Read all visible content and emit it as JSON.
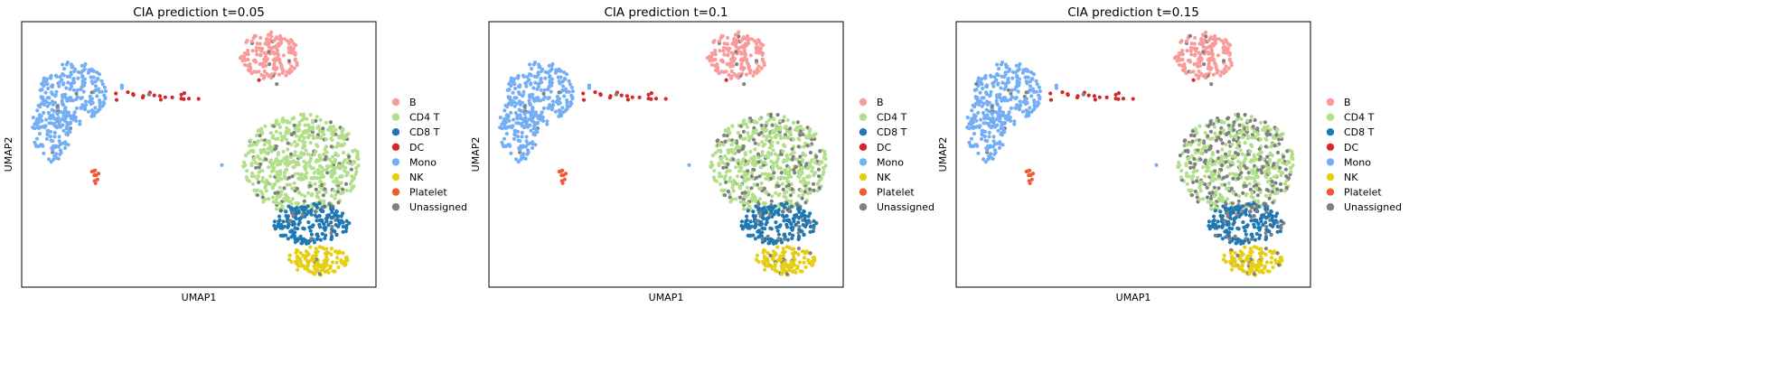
{
  "figure": {
    "panels": [
      {
        "title": "CIA prediction t=0.05"
      },
      {
        "title": "CIA prediction t=0.1"
      },
      {
        "title": "CIA prediction t=0.15"
      }
    ]
  },
  "chart_data": [
    {
      "type": "scatter",
      "title": "CIA prediction t=0.05",
      "xlabel": "UMAP1",
      "ylabel": "UMAP2",
      "ticks": "none",
      "grid": false,
      "legend_position": "right-outside",
      "legend": [
        "B",
        "CD4 T",
        "CD8 T",
        "DC",
        "Mono",
        "NK",
        "Platelet",
        "Unassigned"
      ],
      "unassigned_share": {
        "CD4 T": 0.1,
        "CD8 T": 0.07,
        "NK": 0.04,
        "B": 0.03,
        "Mono": 0.02,
        "DC": 0.12
      }
    },
    {
      "type": "scatter",
      "title": "CIA prediction t=0.1",
      "xlabel": "UMAP1",
      "ylabel": "UMAP2",
      "ticks": "none",
      "grid": false,
      "legend_position": "right-outside",
      "legend": [
        "B",
        "CD4 T",
        "CD8 T",
        "DC",
        "Mono",
        "NK",
        "Platelet",
        "Unassigned"
      ],
      "unassigned_share": {
        "CD4 T": 0.2,
        "CD8 T": 0.12,
        "NK": 0.06,
        "B": 0.04,
        "Mono": 0.02,
        "DC": 0.15
      }
    },
    {
      "type": "scatter",
      "title": "CIA prediction t=0.15",
      "xlabel": "UMAP1",
      "ylabel": "UMAP2",
      "ticks": "none",
      "grid": false,
      "legend_position": "right-outside",
      "legend": [
        "B",
        "CD4 T",
        "CD8 T",
        "DC",
        "Mono",
        "NK",
        "Platelet",
        "Unassigned"
      ],
      "unassigned_share": {
        "CD4 T": 0.32,
        "CD8 T": 0.18,
        "NK": 0.08,
        "B": 0.06,
        "Mono": 0.03,
        "DC": 0.18
      }
    }
  ],
  "categories": [
    {
      "name": "B",
      "color": "#f99b9b"
    },
    {
      "name": "CD4 T",
      "color": "#b2df8a"
    },
    {
      "name": "CD8 T",
      "color": "#1f78b4"
    },
    {
      "name": "DC",
      "color": "#d62728"
    },
    {
      "name": "Mono",
      "color": "#74aef5"
    },
    {
      "name": "NK",
      "color": "#e6cf12"
    },
    {
      "name": "Platelet",
      "color": "#f25a36"
    },
    {
      "name": "Unassigned",
      "color": "#808080"
    }
  ]
}
